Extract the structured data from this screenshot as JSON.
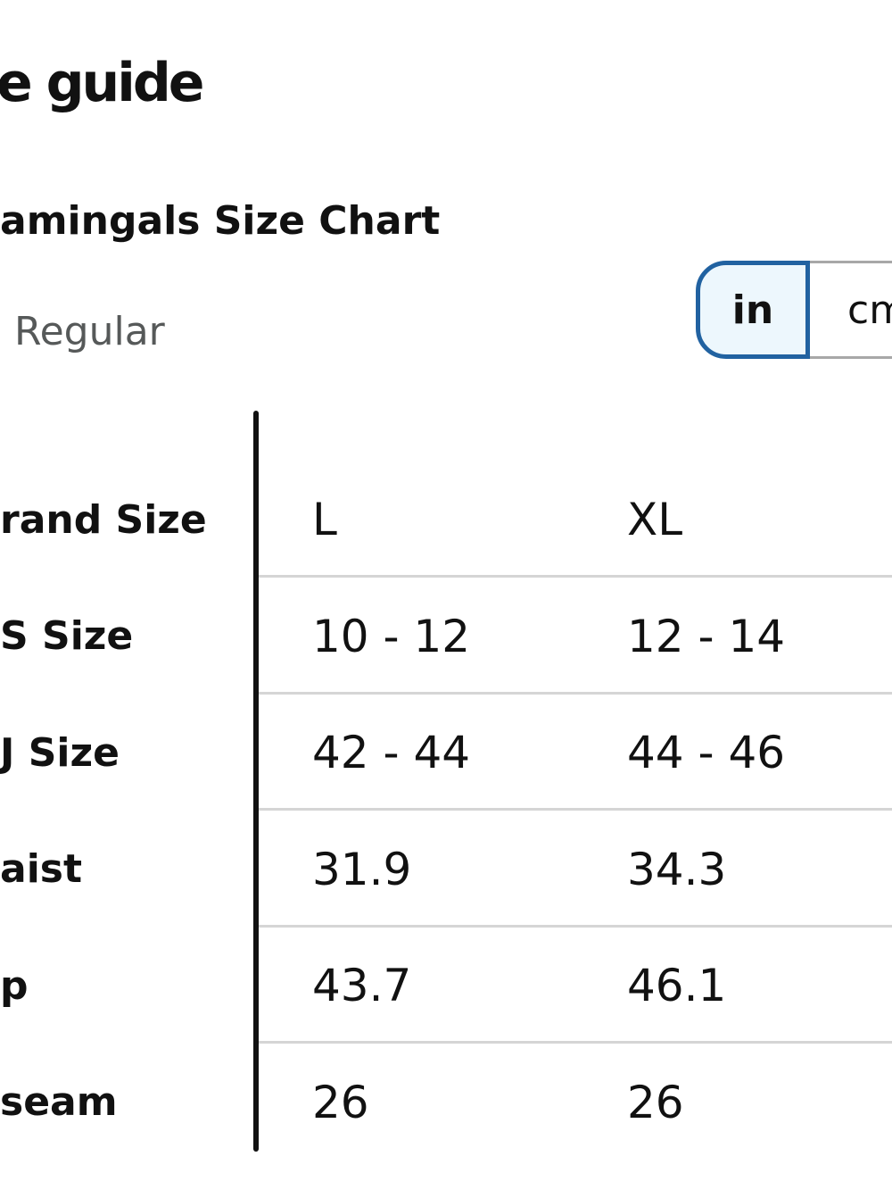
{
  "header": {
    "title": "e guide",
    "subtitle": "amingals Size Chart",
    "fit": "Regular"
  },
  "unit_toggle": {
    "options": [
      "in",
      "cm"
    ]
  },
  "table": {
    "rows": [
      [
        "rand Size",
        "L",
        "XL"
      ],
      [
        "S Size",
        "10 - 12",
        "12 - 14"
      ],
      [
        "J Size",
        "42 - 44",
        "44 - 46"
      ],
      [
        "aist",
        "31.9",
        "34.3"
      ],
      [
        "p",
        "43.7",
        "46.1"
      ],
      [
        "seam",
        "26",
        "26"
      ]
    ]
  }
}
